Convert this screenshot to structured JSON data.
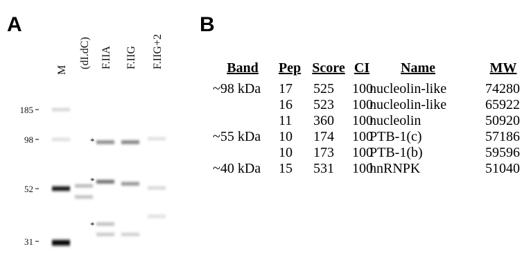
{
  "panels": {
    "a": "A",
    "b": "B"
  },
  "gel": {
    "lanes": [
      "M",
      "(dI.dC)",
      "F.IIA",
      "F.IIG",
      "F.IIG+2"
    ],
    "markers": [
      "185",
      "98",
      "52",
      "31"
    ],
    "asterisks": [
      "*",
      "*",
      "*"
    ]
  },
  "table": {
    "headers": [
      "Band",
      "Pep",
      "Score",
      "CI",
      "Name",
      "MW"
    ],
    "rows": [
      {
        "band": "~98 kDa",
        "pep": 17,
        "score": 525,
        "ci": 100,
        "name": "nucleolin-like",
        "mw": 74280
      },
      {
        "pep": 16,
        "score": 523,
        "ci": 100,
        "name": "nucleolin-like",
        "mw": 65922
      },
      {
        "pep": 11,
        "score": 360,
        "ci": 100,
        "name": "nucleolin",
        "mw": 50920
      },
      {
        "band": "~55 kDa",
        "pep": 10,
        "score": 174,
        "ci": 100,
        "name": "PTB-1(c)",
        "mw": 57186
      },
      {
        "pep": 10,
        "score": 173,
        "ci": 100,
        "name": "PTB-1(b)",
        "mw": 59596
      },
      {
        "band": "~40 kDa",
        "pep": 15,
        "score": 531,
        "ci": 100,
        "name": "hnRNPK",
        "mw": 51040
      }
    ]
  }
}
